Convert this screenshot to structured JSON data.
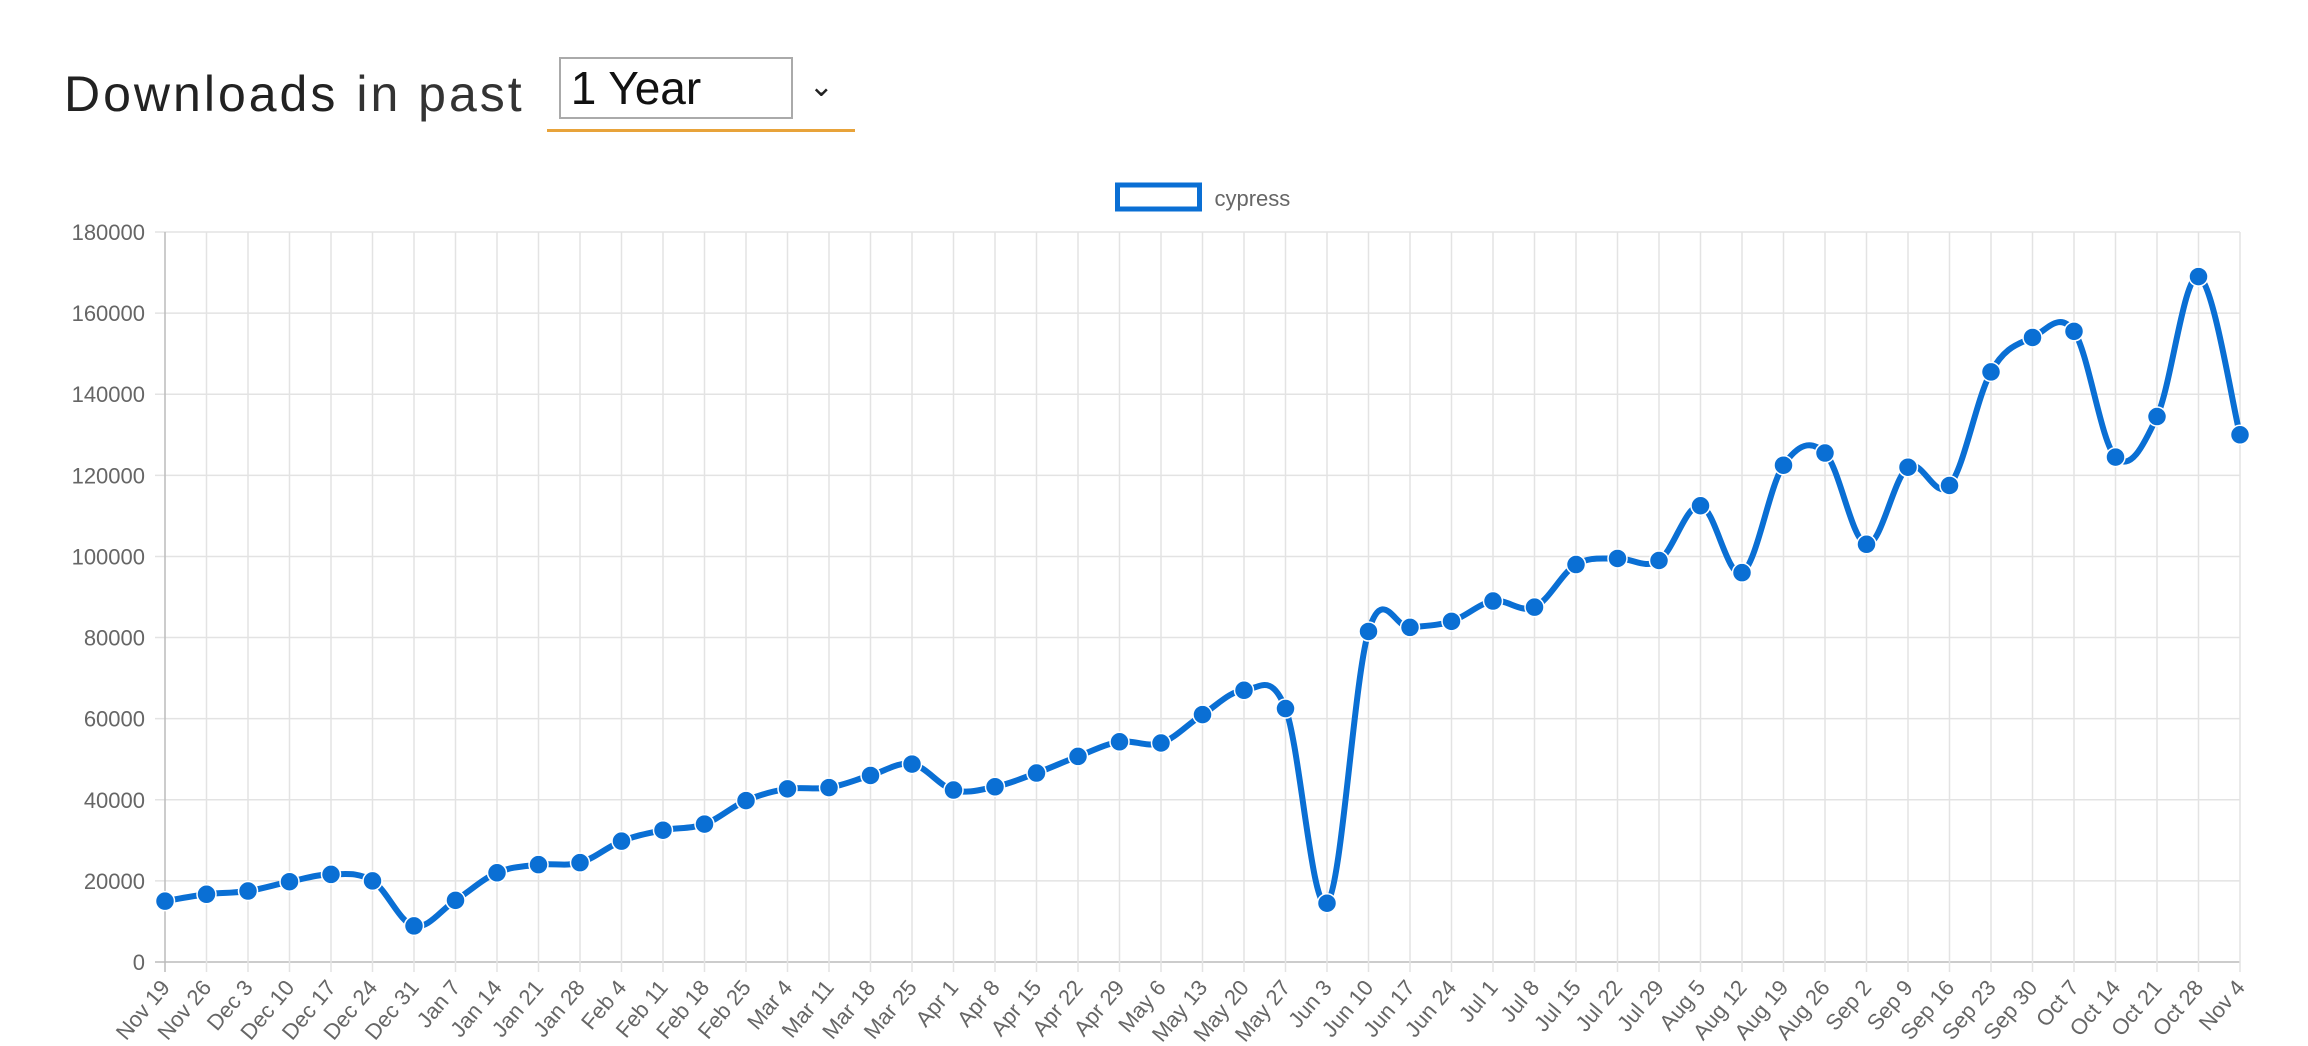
{
  "header": {
    "title_strong": "Downloads",
    "title_light": "in past",
    "period_select": {
      "value": "1 Year",
      "arrow": "chevron-down-icon"
    }
  },
  "chart_data": {
    "type": "line",
    "title": "",
    "xlabel": "",
    "ylabel": "",
    "ylim": [
      0,
      180000
    ],
    "yticks": [
      0,
      20000,
      40000,
      60000,
      80000,
      100000,
      120000,
      140000,
      160000,
      180000
    ],
    "legend": {
      "placement": "top-center"
    },
    "grid": true,
    "colors": {
      "line": "#0a6fd4",
      "point": "#0a6fd4"
    },
    "categories": [
      "Nov 19",
      "Nov 26",
      "Dec 3",
      "Dec 10",
      "Dec 17",
      "Dec 24",
      "Dec 31",
      "Jan 7",
      "Jan 14",
      "Jan 21",
      "Jan 28",
      "Feb 4",
      "Feb 11",
      "Feb 18",
      "Feb 25",
      "Mar 4",
      "Mar 11",
      "Mar 18",
      "Mar 25",
      "Apr 1",
      "Apr 8",
      "Apr 15",
      "Apr 22",
      "Apr 29",
      "May 6",
      "May 13",
      "May 20",
      "May 27",
      "Jun 3",
      "Jun 10",
      "Jun 17",
      "Jun 24",
      "Jul 1",
      "Jul 8",
      "Jul 15",
      "Jul 22",
      "Jul 29",
      "Aug 5",
      "Aug 12",
      "Aug 19",
      "Aug 26",
      "Sep 2",
      "Sep 9",
      "Sep 16",
      "Sep 23",
      "Sep 30",
      "Oct 7",
      "Oct 14",
      "Oct 21",
      "Oct 28",
      "Nov 4"
    ],
    "series": [
      {
        "name": "cypress",
        "values": [
          15000,
          16700,
          17500,
          19800,
          21600,
          20000,
          8900,
          15200,
          22000,
          24000,
          24500,
          29800,
          32500,
          34000,
          39800,
          42700,
          43000,
          46000,
          48800,
          42400,
          43200,
          46600,
          50700,
          54300,
          54000,
          61000,
          67000,
          62500,
          14500,
          81500,
          82500,
          84000,
          89000,
          87500,
          98000,
          99500,
          99000,
          112500,
          96000,
          122500,
          125500,
          103000,
          122000,
          117500,
          145500,
          154000,
          155500,
          124500,
          134500,
          169000,
          130000
        ]
      }
    ]
  }
}
